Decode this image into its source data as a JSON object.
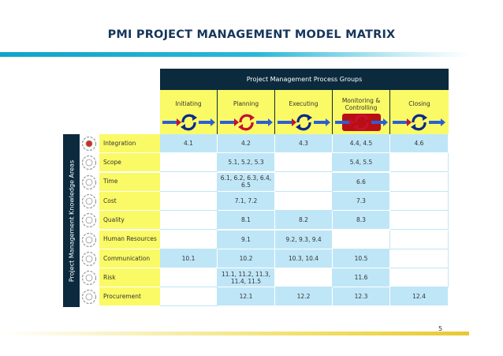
{
  "slide": {
    "title": "PMI PROJECT MANAGEMENT MODEL MATRIX",
    "page_number": "5"
  },
  "matrix": {
    "process_groups_header": "Project Management Process Groups",
    "knowledge_areas_header": "Project Management Knowledge Areas",
    "process_groups": [
      {
        "label": "Initiating",
        "accent": "#0b2a8a"
      },
      {
        "label": "Planning",
        "accent": "#c8102e"
      },
      {
        "label": "Executing",
        "accent": "#0b2a8a"
      },
      {
        "label": "Monitoring & Controlling",
        "accent": "#c8102e"
      },
      {
        "label": "Closing",
        "accent": "#0b2a8a"
      }
    ],
    "knowledge_areas": [
      {
        "label": "Integration",
        "cells": [
          "4.1",
          "4.2",
          "4.3",
          "4.4, 4.5",
          "4.6"
        ]
      },
      {
        "label": "Scope",
        "cells": [
          "",
          "5.1, 5.2, 5.3",
          "",
          "5.4, 5.5",
          ""
        ]
      },
      {
        "label": "Time",
        "cells": [
          "",
          "6.1, 6.2, 6.3, 6.4, 6.5",
          "",
          "6.6",
          ""
        ]
      },
      {
        "label": "Cost",
        "cells": [
          "",
          "7.1, 7.2",
          "",
          "7.3",
          ""
        ]
      },
      {
        "label": "Quality",
        "cells": [
          "",
          "8.1",
          "8.2",
          "8.3",
          ""
        ]
      },
      {
        "label": "Human Resources",
        "cells": [
          "",
          "9.1",
          "9.2, 9.3, 9.4",
          "",
          ""
        ]
      },
      {
        "label": "Communication",
        "cells": [
          "10.1",
          "10.2",
          "10.3, 10.4",
          "10.5",
          ""
        ]
      },
      {
        "label": "Risk",
        "cells": [
          "",
          "11.1, 11.2, 11.3, 11.4, 11.5",
          "",
          "11.6",
          ""
        ]
      },
      {
        "label": "Procurement",
        "cells": [
          "",
          "12.1",
          "12.2",
          "12.3",
          "12.4"
        ]
      }
    ]
  },
  "colors": {
    "header_navy": "#0b2a3d",
    "phase_yellow": "#fafa66",
    "cell_blue": "#bfe6f7",
    "title_navy": "#16365c"
  }
}
